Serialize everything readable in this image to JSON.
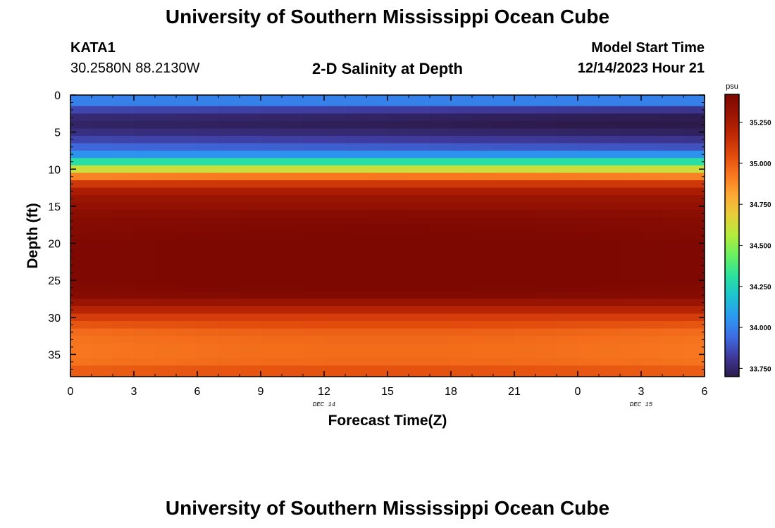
{
  "header": {
    "title": "University of Southern Mississippi Ocean Cube",
    "station": "KATA1",
    "coords": "30.2580N  88.2130W",
    "subtitle": "2-D Salinity at Depth",
    "model_label": "Model Start Time",
    "model_time": "12/14/2023 Hour 21"
  },
  "footer": {
    "title": "University of Southern Mississippi Ocean Cube"
  },
  "chart_data": {
    "type": "heatmap",
    "title": "2-D Salinity at Depth",
    "xlabel": "Forecast Time(Z)",
    "ylabel": "Depth (ft)",
    "x_tick_labels": [
      "0",
      "3",
      "6",
      "9",
      "12",
      "15",
      "18",
      "21",
      "0",
      "3",
      "6"
    ],
    "x_date_labels": [
      {
        "label": "DEC 14",
        "at_tick": 4
      },
      {
        "label": "DEC 15",
        "at_tick": 9
      }
    ],
    "xlim": [
      0,
      30
    ],
    "ylim": [
      0,
      38
    ],
    "y_ticks": [
      0,
      5,
      10,
      15,
      20,
      25,
      30,
      35
    ],
    "y_inverted": true,
    "colorbar": {
      "unit": "psu",
      "min": 33.7,
      "max": 35.42,
      "ticks": [
        "33.750",
        "34.000",
        "34.250",
        "34.500",
        "34.750",
        "35.000",
        "35.250"
      ],
      "colors": [
        "#2c1a4b",
        "#3f3a9c",
        "#3e6ee4",
        "#2b9af0",
        "#1cc4cf",
        "#2be29d",
        "#68f062",
        "#b2ec3c",
        "#e6cf3a",
        "#fcaa35",
        "#f8771f",
        "#e14a0c",
        "#bf2804",
        "#9a1402",
        "#7d0802"
      ]
    },
    "depth_layers_ft": [
      0.0,
      1.5,
      2.5,
      3.5,
      4.5,
      5.5,
      6.5,
      7.5,
      8.5,
      9.5,
      10.5,
      11.5,
      12.5,
      13.5,
      14.5,
      15.5,
      16.5,
      17.5,
      18.5,
      19.5,
      20.5,
      21.5,
      22.5,
      23.5,
      24.5,
      25.5,
      26.5,
      27.5,
      28.5,
      29.5,
      30.5,
      31.5,
      32.5,
      33.5,
      34.5,
      35.5,
      36.5,
      38.0
    ],
    "salinity_psu": [
      34.0,
      33.85,
      33.76,
      33.74,
      33.78,
      33.85,
      33.93,
      34.05,
      34.3,
      34.62,
      34.9,
      35.12,
      35.24,
      35.3,
      35.33,
      35.36,
      35.38,
      35.39,
      35.4,
      35.41,
      35.41,
      35.41,
      35.41,
      35.41,
      35.41,
      35.4,
      35.38,
      35.3,
      35.2,
      35.1,
      35.02,
      34.96,
      34.94,
      34.93,
      34.93,
      34.94,
      35.0
    ]
  }
}
